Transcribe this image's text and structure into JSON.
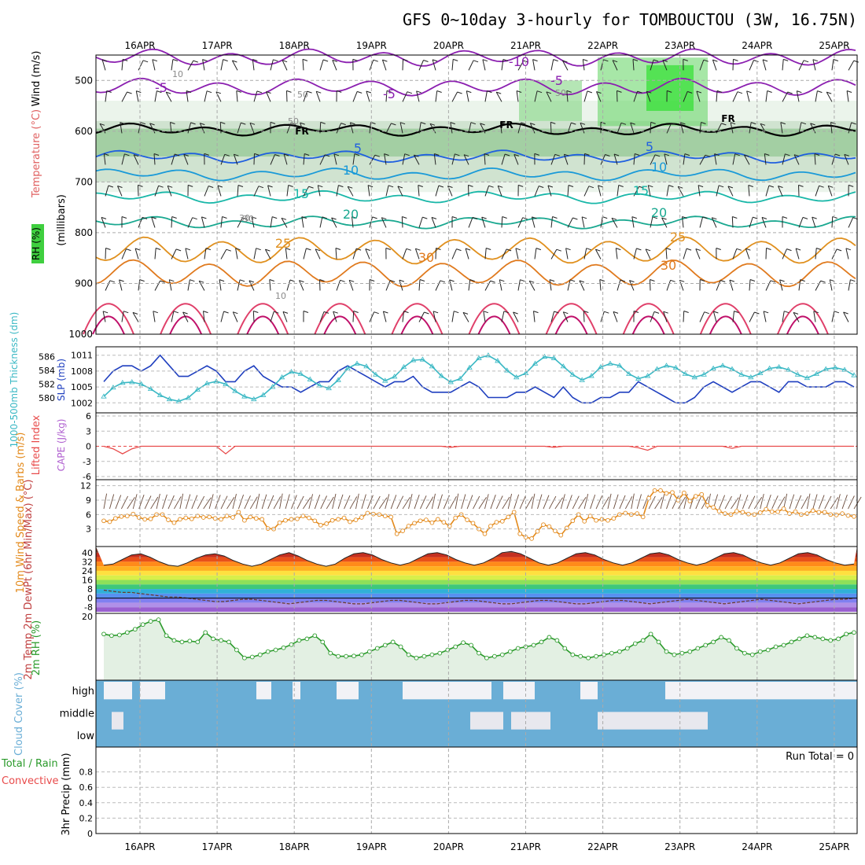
{
  "title": "GFS 0~10day 3-hourly for TOMBOUCTOU (3W, 16.75N)",
  "days": [
    "16APR",
    "17APR",
    "18APR",
    "19APR",
    "20APR",
    "21APR",
    "22APR",
    "23APR",
    "24APR",
    "25APR"
  ],
  "colors": {
    "cloud": "#6aaed6",
    "rh_fill": "#e3f0e3",
    "rh_line": "#2a9a2a",
    "slp": "#1f3fbf",
    "thk": "#3ab8c4",
    "wind": "#e38a1c",
    "lifted": "#e84a4a"
  },
  "chart_data": [
    {
      "id": "upper_air",
      "type": "contour",
      "ylabel_left": "Wind (m/s)",
      "ylabel_temp": "Temperature (°C)",
      "ylabel_rh": "RH (%)",
      "ylabel_pressure": "(millibars)",
      "y_ticks": [
        500,
        600,
        700,
        800,
        900,
        1000
      ],
      "ylim": [
        450,
        1000
      ],
      "temperature_labels": [
        "-10",
        "-5",
        "-5",
        "-5",
        "5",
        "5",
        "10",
        "10",
        "15",
        "15",
        "20",
        "20",
        "25",
        "25",
        "30",
        "30"
      ],
      "rh_labels": [
        "10",
        "30",
        "50",
        "50",
        "30",
        "50",
        "10"
      ],
      "freezing_label": "FR"
    },
    {
      "id": "slp_thickness",
      "type": "line",
      "left_ylabel": "1000-500mb Thickness (dm)",
      "left_ticks": [
        586,
        584,
        582,
        580
      ],
      "right_ylabel": "SLP (mb)",
      "right_ticks": [
        1011,
        1008,
        1005,
        1002
      ],
      "series": [
        {
          "name": "SLP (mb)",
          "values": [
            1006,
            1008,
            1009,
            1009,
            1008,
            1009,
            1011,
            1009,
            1007,
            1007,
            1008,
            1009,
            1008,
            1006,
            1006,
            1008,
            1009,
            1007,
            1006,
            1005,
            1005,
            1004,
            1005,
            1006,
            1006,
            1008,
            1009,
            1008,
            1007,
            1006,
            1005,
            1006,
            1006,
            1007,
            1005,
            1004,
            1004,
            1004,
            1005,
            1006,
            1005,
            1003,
            1003,
            1003,
            1004,
            1004,
            1005,
            1004,
            1003,
            1005,
            1003,
            1002,
            1002,
            1003,
            1003,
            1004,
            1004,
            1006,
            1005,
            1004,
            1003,
            1002,
            1002,
            1003,
            1005,
            1006,
            1005,
            1004,
            1005,
            1006,
            1006,
            1005,
            1004,
            1006,
            1006,
            1005,
            1005,
            1005,
            1006,
            1006,
            1005,
            1006,
            1004,
            1006,
            1005,
            1006,
            1006,
            1006,
            1005,
            1006,
            1004,
            1005,
            1005,
            1006,
            1005,
            1005,
            1006,
            1005,
            1005,
            1006,
            1005,
            1006,
            1006,
            1005,
            1004,
            1005,
            1006,
            1005,
            1005,
            1006,
            1005,
            1005,
            1006,
            1005,
            1004,
            1005,
            1006,
            1005,
            1004,
            1005,
            1006,
            1004,
            1005,
            1006,
            1005,
            1004,
            1006,
            1005,
            1004,
            1005,
            1006,
            1006,
            1004,
            1005,
            1006,
            1005,
            1004,
            1005,
            1006,
            1005,
            1004,
            1005,
            1005,
            1006,
            1005,
            1004,
            1005,
            1004,
            1005,
            1006,
            1005,
            1004,
            1005,
            1006,
            1005,
            1006,
            1005,
            1004,
            1006,
            1005,
            1005,
            1004,
            1005,
            1006,
            1005,
            1004,
            1005,
            1006,
            1005,
            1004,
            1005,
            1006,
            1004,
            1005,
            1006,
            1005,
            1004,
            1006,
            1005,
            1004,
            1005,
            1006,
            1005,
            1004,
            1005,
            1006,
            1005,
            1004,
            1005,
            1006,
            1005,
            1004,
            1006,
            1005,
            1004,
            1005,
            1006,
            1005,
            1004,
            1005,
            1006
          ]
        },
        {
          "name": "1000-500mb Thickness (dm)",
          "values": [
            580.2,
            581.5,
            582.2,
            582.3,
            582.0,
            581.3,
            580.4,
            579.8,
            579.5,
            580.0,
            581.2,
            582.1,
            582.4,
            582.0,
            581.0,
            580.2,
            579.8,
            580.4,
            581.6,
            583.0,
            583.8,
            583.5,
            582.7,
            581.8,
            581.4,
            582.6,
            584.3,
            585.0,
            584.6,
            583.4,
            582.5,
            583.1,
            584.5,
            585.5,
            585.6,
            584.6,
            583.2,
            582.3,
            582.8,
            584.4,
            585.8,
            586.2,
            585.4,
            584.0,
            583.0,
            583.6,
            585.0,
            586.0,
            585.8,
            584.6,
            583.4,
            582.6,
            583.2,
            584.5,
            585.0,
            584.7,
            583.5,
            582.8,
            583.2,
            584.2,
            584.7,
            584.4,
            583.5,
            583.0,
            583.4,
            584.3,
            584.7,
            584.2,
            583.4,
            583.0,
            583.6,
            584.3,
            584.5,
            584.1,
            583.4,
            582.9,
            583.5,
            584.2,
            584.4,
            584.1,
            583.3,
            583.0,
            583.6,
            584.3,
            584.5,
            584.2,
            583.4,
            583.0,
            583.5,
            584.2,
            584.5,
            584.1,
            583.4,
            583.0,
            583.6,
            584.2,
            584.5,
            584.0,
            583.4,
            583.1,
            583.6,
            584.2,
            584.4,
            584.1,
            583.4,
            583.0,
            583.5,
            584.2,
            584.5,
            584.1,
            583.4,
            583.0,
            583.6,
            584.2,
            584.4,
            584.1,
            583.4,
            583.0,
            583.5,
            584.2,
            584.5,
            584.1,
            583.4,
            583.0,
            583.6,
            584.2,
            584.4,
            584.1,
            583.4,
            583.0,
            583.5,
            584.2,
            584.5,
            584.1,
            583.4,
            583.0,
            583.6,
            584.2,
            584.4,
            584.1,
            583.4,
            583.0,
            583.5,
            584.2,
            584.5,
            584.1,
            583.4,
            583.0,
            583.6,
            584.2,
            584.4,
            584.1,
            583.4,
            583.0,
            583.5,
            584.2,
            584.5,
            584.1,
            583.4,
            583.0,
            583.6,
            584.2,
            584.4,
            584.1,
            583.4,
            583.0,
            583.5,
            584.2,
            584.5,
            584.1,
            583.4,
            583.0,
            583.6,
            584.2,
            584.4,
            584.1,
            583.4,
            583.0,
            583.5,
            584.2,
            584.5,
            584.1,
            583.4,
            583.0,
            583.6,
            584.2,
            584.4,
            584.1,
            583.4,
            583.0,
            583.5,
            584.2,
            584.5,
            584.1,
            583.4,
            583.0
          ]
        }
      ]
    },
    {
      "id": "stability",
      "type": "line",
      "left_ylabel": "Lifted Index",
      "right_ylabel": "CAPE (J/kg)",
      "ticks": [
        "6",
        "3",
        "0",
        "-3",
        "-6"
      ],
      "ylim": [
        -6,
        6
      ],
      "lifted_index": [
        6,
        5.5,
        4.5,
        5.5,
        6,
        6,
        6,
        6,
        6,
        6,
        6,
        6,
        6,
        4.5,
        6,
        6,
        6,
        6,
        6,
        6,
        6,
        6,
        6,
        6,
        6,
        6,
        6,
        6,
        6,
        6,
        6,
        6,
        6,
        6,
        6,
        6,
        6,
        5.8,
        6,
        6,
        6,
        6,
        6,
        6,
        6,
        6,
        6,
        6,
        5.8,
        6,
        6,
        6,
        6,
        6,
        6,
        6,
        6,
        5.7,
        5.2,
        6,
        6,
        6,
        6,
        6,
        6,
        6,
        6,
        5.6,
        6,
        6,
        6,
        6,
        6,
        6,
        6,
        6,
        6,
        6,
        6,
        6,
        6,
        6,
        6,
        6,
        6,
        6,
        6,
        6,
        5.2,
        4.8,
        6,
        6,
        6,
        6,
        6,
        6,
        6,
        6,
        6,
        6,
        4.2,
        6,
        6,
        6,
        6,
        6,
        6,
        6,
        6,
        5.2,
        4.9,
        6,
        6,
        6,
        6,
        6,
        6,
        6,
        6,
        6,
        6,
        6,
        6,
        6,
        6,
        6,
        6,
        6,
        5.4,
        6,
        6,
        6,
        6,
        6,
        6,
        6,
        6,
        6,
        6,
        6,
        6,
        6,
        6,
        6,
        6,
        6,
        6,
        6,
        6,
        6,
        6,
        6,
        6,
        6,
        6,
        6,
        6,
        6,
        6,
        6,
        6,
        6,
        6,
        6,
        6,
        6,
        6,
        6,
        6,
        6,
        6,
        6,
        6,
        6,
        6,
        6,
        6,
        6,
        6,
        6,
        6,
        6,
        6,
        6,
        6,
        6,
        6,
        6,
        6,
        6,
        6
      ]
    },
    {
      "id": "wind10m",
      "type": "line",
      "ylabel": "10m Wind Speed & Barbs (m/s)",
      "ticks": [
        "12",
        "9",
        "6",
        "3"
      ],
      "ylim": [
        0,
        12.6
      ],
      "values": [
        4.7,
        4.5,
        5.2,
        5.6,
        5.7,
        6.1,
        5.4,
        5.0,
        5.1,
        6.0,
        6.0,
        4.9,
        4.3,
        5.0,
        5.3,
        5.1,
        5.7,
        5.4,
        5.5,
        5.2,
        5.0,
        5.7,
        5.4,
        6.5,
        4.8,
        5.5,
        5.2,
        5.0,
        3.1,
        3.0,
        4.3,
        4.8,
        5.0,
        5.1,
        5.7,
        5.3,
        4.7,
        3.8,
        4.1,
        4.8,
        5.0,
        5.3,
        4.5,
        4.9,
        5.4,
        6.3,
        6.1,
        6.0,
        5.7,
        5.5,
        2.0,
        2.6,
        3.6,
        4.2,
        4.7,
        4.9,
        4.3,
        5.0,
        4.4,
        3.6,
        5.3,
        6.0,
        4.9,
        4.2,
        3.0,
        2.0,
        3.6,
        4.4,
        4.6,
        5.5,
        6.5,
        2.0,
        1.3,
        1.0,
        2.5,
        3.9,
        3.5,
        2.6,
        1.7,
        3.2,
        4.7,
        6.0,
        4.6,
        5.7,
        4.8,
        5.0,
        4.8,
        5.2,
        6.0,
        6.3,
        6.0,
        6.2,
        5.5,
        9.4,
        11.0,
        11.0,
        10.4,
        10.6,
        9.0,
        10.5,
        8.8,
        9.8,
        10.2,
        7.9,
        7.5,
        6.7,
        6.2,
        6.0,
        6.7,
        6.5,
        6.1,
        6.0,
        6.4,
        7.1,
        6.6,
        6.6,
        7.2,
        6.2,
        6.6,
        6.0,
        6.2,
        6.8,
        6.5,
        6.5,
        6.0,
        5.9,
        6.2,
        5.8,
        5.6
      ]
    },
    {
      "id": "temp2m",
      "type": "area",
      "ylabel": "2m Temp 2m DewPt (6hr Min/Max) (°C)",
      "ticks": [
        "40",
        "32",
        "24",
        "16",
        "8",
        "0",
        "-8"
      ],
      "ylim": [
        -12,
        44
      ],
      "temperature": [
        29,
        30,
        34,
        38,
        39,
        36,
        32,
        29,
        28,
        31,
        35,
        38,
        39,
        37,
        33,
        30,
        28,
        30,
        34,
        38,
        40,
        37,
        33,
        30,
        28,
        30,
        35,
        39,
        40,
        38,
        34,
        31,
        29,
        31,
        35,
        39,
        40,
        38,
        34,
        31,
        29,
        31,
        35,
        40,
        41,
        39,
        35,
        31,
        29,
        31,
        35,
        39,
        40,
        38,
        34,
        31,
        29,
        31,
        35,
        39,
        40,
        38,
        34,
        31,
        29,
        31,
        35,
        39,
        40,
        38,
        34,
        31,
        29,
        31,
        35,
        39,
        40,
        38,
        34,
        31,
        29,
        30
      ],
      "dewpoint": [
        7,
        6,
        5,
        5,
        4,
        3,
        2,
        1,
        1,
        0,
        -1,
        -2,
        -3,
        -3,
        -2,
        -1,
        -1,
        -2,
        -3,
        -4,
        -5,
        -4,
        -3,
        -2,
        -2,
        -3,
        -4,
        -5,
        -5,
        -4,
        -3,
        -2,
        -2,
        -3,
        -4,
        -5,
        -5,
        -4,
        -3,
        -2,
        -2,
        -3,
        -4,
        -5,
        -5,
        -4,
        -3,
        -2,
        -2,
        -3,
        -4,
        -5,
        -5,
        -4,
        -3,
        -2,
        -2,
        -3,
        -4,
        -5,
        -4,
        -3,
        -2,
        -1,
        -2,
        -3,
        -4,
        -5,
        -4,
        -3,
        -2,
        -1,
        -2,
        -3,
        -4,
        -5,
        -4,
        -3,
        -2,
        -1,
        -1,
        0
      ]
    },
    {
      "id": "rh2m",
      "type": "area",
      "ylabel": "2m RH (%)",
      "ticks": [
        "20"
      ],
      "ylim": [
        0,
        21
      ],
      "values": [
        14.5,
        14.0,
        14.2,
        15.0,
        16.0,
        17.5,
        18.5,
        19.0,
        14.0,
        12.5,
        12.0,
        12.3,
        12.0,
        15.0,
        13.0,
        12.5,
        12.0,
        9.5,
        7.0,
        7.3,
        8.0,
        9.0,
        9.5,
        10.2,
        11.2,
        12.5,
        13.0,
        14.0,
        12.0,
        8.5,
        7.5,
        7.5,
        7.6,
        8.0,
        9.0,
        10.0,
        11.0,
        12.0,
        10.5,
        8.0,
        7.0,
        7.5,
        8.0,
        8.5,
        9.5,
        10.5,
        11.8,
        11.0,
        8.5,
        7.0,
        7.5,
        8.0,
        9.0,
        10.0,
        10.5,
        11.0,
        12.0,
        13.5,
        12.5,
        10.0,
        8.0,
        7.5,
        7.0,
        7.5,
        8.0,
        8.5,
        9.0,
        10.0,
        11.5,
        12.5,
        14.5,
        12.0,
        9.0,
        8.0,
        8.5,
        9.0,
        10.0,
        11.0,
        12.0,
        13.5,
        12.5,
        10.0,
        8.5,
        8.0,
        9.0,
        9.5,
        10.5,
        11.0,
        12.0,
        13.0,
        14.0,
        13.5,
        13.0,
        12.5,
        13.0,
        14.5,
        15.0
      ]
    },
    {
      "id": "cloud",
      "type": "bar",
      "ylabel": "Cloud Cover (%)",
      "levels": [
        "high",
        "middle",
        "low"
      ]
    },
    {
      "id": "precip",
      "type": "bar",
      "ylabel": "3hr Precip (mm)",
      "left_labels": [
        "Total / Rain",
        "Convective"
      ],
      "ticks": [
        "0.8",
        "0.6",
        "0.4",
        "0.2",
        "0"
      ],
      "ylim": [
        0,
        1
      ],
      "run_total": "Run Total = 0",
      "values": []
    }
  ]
}
